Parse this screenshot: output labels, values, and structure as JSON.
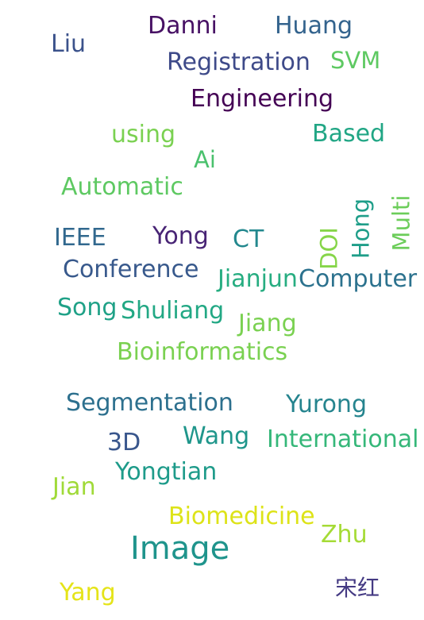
{
  "words": [
    {
      "text": "Danni",
      "color": "#471164"
    },
    {
      "text": "Huang",
      "color": "#33638d"
    },
    {
      "text": "Liu",
      "color": "#3b528b"
    },
    {
      "text": "Registration",
      "color": "#3e4a89"
    },
    {
      "text": "SVM",
      "color": "#5ec962"
    },
    {
      "text": "Engineering",
      "color": "#440154"
    },
    {
      "text": "using",
      "color": "#7ad151"
    },
    {
      "text": "Based",
      "color": "#21a685"
    },
    {
      "text": "Ai",
      "color": "#4ac16d"
    },
    {
      "text": "Automatic",
      "color": "#5ec962"
    },
    {
      "text": "IEEE",
      "color": "#31688e"
    },
    {
      "text": "Yong",
      "color": "#482475"
    },
    {
      "text": "CT",
      "color": "#23888e"
    },
    {
      "text": "DOI",
      "color": "#86d549"
    },
    {
      "text": "Hong",
      "color": "#1f9e89"
    },
    {
      "text": "Multi",
      "color": "#6ccd5a"
    },
    {
      "text": "Conference",
      "color": "#38598c"
    },
    {
      "text": "Jianjun",
      "color": "#27ad81"
    },
    {
      "text": "Computer",
      "color": "#2c728e"
    },
    {
      "text": "Song",
      "color": "#1fa187"
    },
    {
      "text": "Shuliang",
      "color": "#22a884"
    },
    {
      "text": "Jiang",
      "color": "#7ad151"
    },
    {
      "text": "Bioinformatics",
      "color": "#7ad151"
    },
    {
      "text": "Segmentation",
      "color": "#2d708e"
    },
    {
      "text": "Yurong",
      "color": "#25848e"
    },
    {
      "text": "3D",
      "color": "#39568c"
    },
    {
      "text": "Wang",
      "color": "#1f968b"
    },
    {
      "text": "International",
      "color": "#35b779"
    },
    {
      "text": "Jian",
      "color": "#a0da39"
    },
    {
      "text": "Yongtian",
      "color": "#1e9b8a"
    },
    {
      "text": "Biomedicine",
      "color": "#dde318"
    },
    {
      "text": "Zhu",
      "color": "#a5db36"
    },
    {
      "text": "Image",
      "color": "#1f948c"
    },
    {
      "text": "Yang",
      "color": "#e5e419"
    },
    {
      "text": "宋红",
      "color": "#443a83"
    }
  ]
}
